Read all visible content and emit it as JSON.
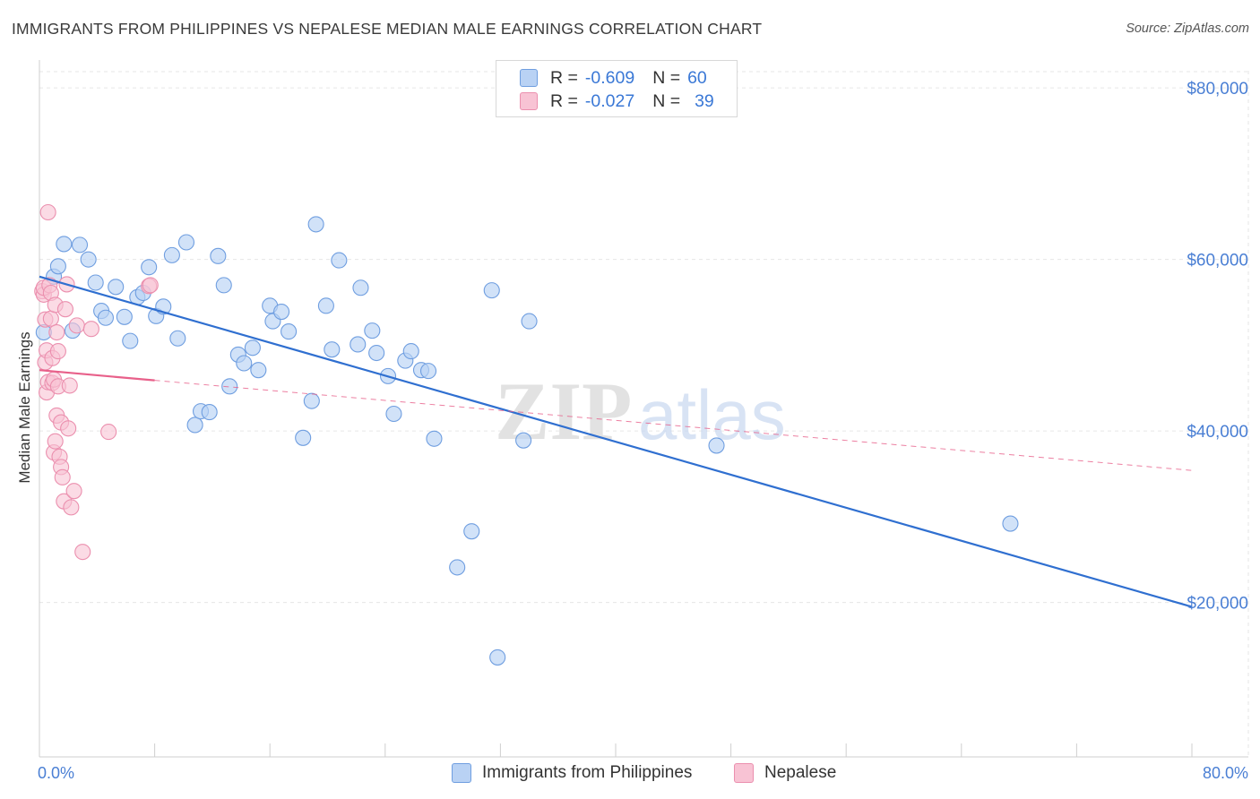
{
  "title": "IMMIGRANTS FROM PHILIPPINES VS NEPALESE MEDIAN MALE EARNINGS CORRELATION CHART",
  "source": "Source: ZipAtlas.com",
  "watermark": {
    "zip": "ZIP",
    "atlas": "atlas"
  },
  "legend": {
    "rows": [
      {
        "r_label": "R =",
        "r_value": "-0.609",
        "n_label": "N =",
        "n_value": "60"
      },
      {
        "r_label": "R =",
        "r_value": "-0.027",
        "n_label": "N =",
        "n_value": "39"
      }
    ]
  },
  "chart_data": {
    "type": "scatter",
    "ylabel": "Median Male Earnings",
    "x_tick_labels": [
      "0.0%",
      "80.0%"
    ],
    "y_tick_labels": [
      "$80,000",
      "$60,000",
      "$40,000",
      "$20,000"
    ],
    "y_ticks": [
      80000,
      60000,
      40000,
      20000
    ],
    "xlim": [
      0,
      80
    ],
    "ylim": [
      2000,
      82000
    ],
    "grid": true,
    "legend_position": "bottom",
    "colors": {
      "philippines_fill": "#b9d2f4",
      "philippines_stroke": "#6f9ee0",
      "philippines_line": "#2f6fd0",
      "nepalese_fill": "#f8c3d4",
      "nepalese_stroke": "#eb8fae",
      "nepalese_line": "#e8608a"
    },
    "series": [
      {
        "name": "Immigrants from Philippines",
        "trend": {
          "x": [
            0,
            80
          ],
          "y": [
            58000,
            19500
          ]
        },
        "points": [
          [
            0.3,
            51500
          ],
          [
            1.0,
            58000
          ],
          [
            1.3,
            59200
          ],
          [
            1.7,
            61800
          ],
          [
            2.3,
            51700
          ],
          [
            2.8,
            61700
          ],
          [
            3.4,
            60000
          ],
          [
            3.9,
            57300
          ],
          [
            4.3,
            54000
          ],
          [
            4.6,
            53200
          ],
          [
            5.3,
            56800
          ],
          [
            5.9,
            53300
          ],
          [
            6.3,
            50500
          ],
          [
            6.8,
            55600
          ],
          [
            7.2,
            56100
          ],
          [
            7.6,
            59100
          ],
          [
            8.1,
            53400
          ],
          [
            8.6,
            54500
          ],
          [
            9.2,
            60500
          ],
          [
            9.6,
            50800
          ],
          [
            10.2,
            62000
          ],
          [
            10.8,
            40700
          ],
          [
            11.2,
            42300
          ],
          [
            11.8,
            42200
          ],
          [
            12.4,
            60400
          ],
          [
            12.8,
            57000
          ],
          [
            13.2,
            45200
          ],
          [
            13.8,
            48900
          ],
          [
            14.2,
            47900
          ],
          [
            14.8,
            49700
          ],
          [
            15.2,
            47100
          ],
          [
            16.0,
            54600
          ],
          [
            16.2,
            52800
          ],
          [
            16.8,
            53900
          ],
          [
            17.3,
            51600
          ],
          [
            18.3,
            39200
          ],
          [
            18.9,
            43500
          ],
          [
            19.2,
            64100
          ],
          [
            19.9,
            54600
          ],
          [
            20.3,
            49500
          ],
          [
            20.8,
            59900
          ],
          [
            22.1,
            50100
          ],
          [
            22.3,
            56700
          ],
          [
            23.1,
            51700
          ],
          [
            23.4,
            49100
          ],
          [
            24.2,
            46400
          ],
          [
            24.6,
            42000
          ],
          [
            25.4,
            48200
          ],
          [
            25.8,
            49300
          ],
          [
            26.5,
            47100
          ],
          [
            27.0,
            47000
          ],
          [
            27.4,
            39100
          ],
          [
            29.0,
            24100
          ],
          [
            30.0,
            28300
          ],
          [
            31.4,
            56400
          ],
          [
            31.8,
            13600
          ],
          [
            33.6,
            38900
          ],
          [
            34.0,
            52800
          ],
          [
            47.0,
            38300
          ],
          [
            67.4,
            29200
          ]
        ]
      },
      {
        "name": "Nepalese",
        "trend": {
          "x": [
            0,
            8
          ],
          "y": [
            47100,
            45900
          ],
          "dashed_x": [
            8,
            80
          ],
          "dashed_y": [
            45900,
            35400
          ]
        },
        "points": [
          [
            0.2,
            56300
          ],
          [
            0.3,
            55900
          ],
          [
            0.3,
            56700
          ],
          [
            0.4,
            53000
          ],
          [
            0.4,
            48000
          ],
          [
            0.5,
            49400
          ],
          [
            0.5,
            44500
          ],
          [
            0.6,
            45700
          ],
          [
            0.6,
            65500
          ],
          [
            0.7,
            57000
          ],
          [
            0.8,
            56100
          ],
          [
            0.8,
            53100
          ],
          [
            0.9,
            48500
          ],
          [
            0.9,
            45600
          ],
          [
            1.0,
            46000
          ],
          [
            1.0,
            37500
          ],
          [
            1.1,
            38800
          ],
          [
            1.1,
            54700
          ],
          [
            1.2,
            51500
          ],
          [
            1.2,
            41800
          ],
          [
            1.3,
            49300
          ],
          [
            1.3,
            45200
          ],
          [
            1.4,
            37000
          ],
          [
            1.5,
            41000
          ],
          [
            1.5,
            35800
          ],
          [
            1.6,
            34600
          ],
          [
            1.7,
            31800
          ],
          [
            1.8,
            54200
          ],
          [
            1.9,
            57100
          ],
          [
            2.0,
            40300
          ],
          [
            2.1,
            45300
          ],
          [
            2.2,
            31100
          ],
          [
            2.4,
            33000
          ],
          [
            2.6,
            52300
          ],
          [
            3.0,
            25900
          ],
          [
            3.6,
            51900
          ],
          [
            4.8,
            39900
          ],
          [
            7.6,
            56900
          ],
          [
            7.7,
            57000
          ]
        ]
      }
    ]
  }
}
